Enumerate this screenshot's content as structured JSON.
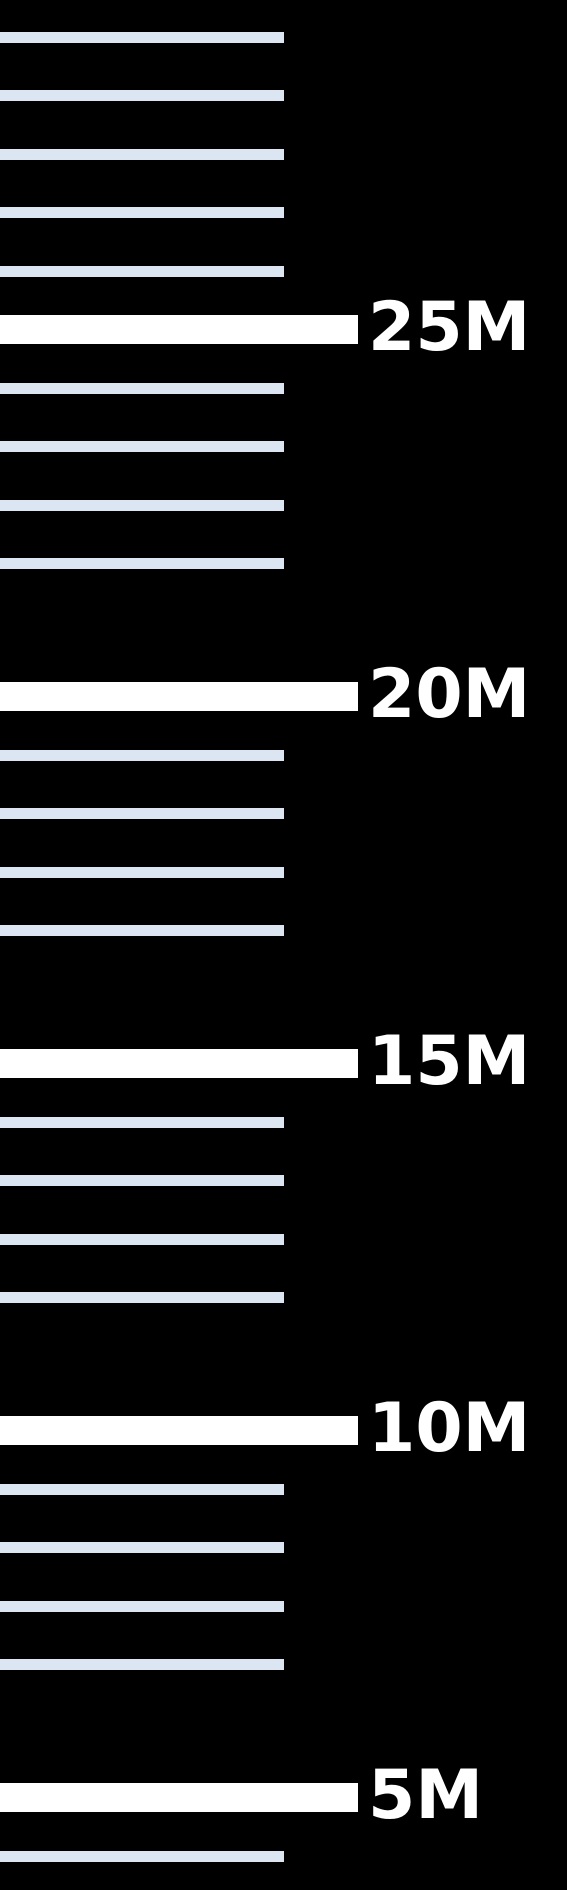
{
  "ruler": {
    "colors": {
      "background": "#000000",
      "major_tick": "#FFFFFF",
      "minor_tick": "#DCE6F2",
      "label": "#FFFFFF"
    },
    "minor_per_major": 5,
    "marks": [
      {
        "value": 25,
        "label": "25M"
      },
      {
        "value": 20,
        "label": "20M"
      },
      {
        "value": 15,
        "label": "15M"
      },
      {
        "value": 10,
        "label": "10M"
      },
      {
        "value": 5,
        "label": "5M"
      }
    ]
  }
}
